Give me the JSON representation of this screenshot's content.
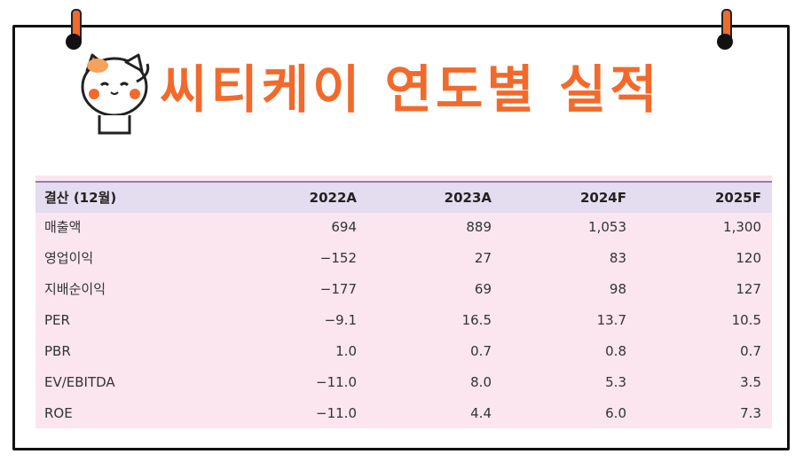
{
  "title": "씨티케이 연도별 실적",
  "table": {
    "headers": [
      "결산 (12월)",
      "2022A",
      "2023A",
      "2024F",
      "2025F"
    ],
    "rows": [
      [
        "매출액",
        "694",
        "889",
        "1,053",
        "1,300"
      ],
      [
        "영업이익",
        "−152",
        "27",
        "83",
        "120"
      ],
      [
        "지배순이익",
        "−177",
        "69",
        "98",
        "127"
      ],
      [
        "PER",
        "−9.1",
        "16.5",
        "13.7",
        "10.5"
      ],
      [
        "PBR",
        "1.0",
        "0.7",
        "0.8",
        "0.7"
      ],
      [
        "EV/EBITDA",
        "−11.0",
        "8.0",
        "5.3",
        "3.5"
      ],
      [
        "ROE",
        "−11.0",
        "4.4",
        "6.0",
        "7.3"
      ]
    ]
  },
  "colors": {
    "accent": "#f26a2b",
    "header_bg": "#e4dcef",
    "table_bg": "#fbe6ef"
  },
  "icons": [
    "cat-mascot-icon",
    "pin-icon"
  ]
}
